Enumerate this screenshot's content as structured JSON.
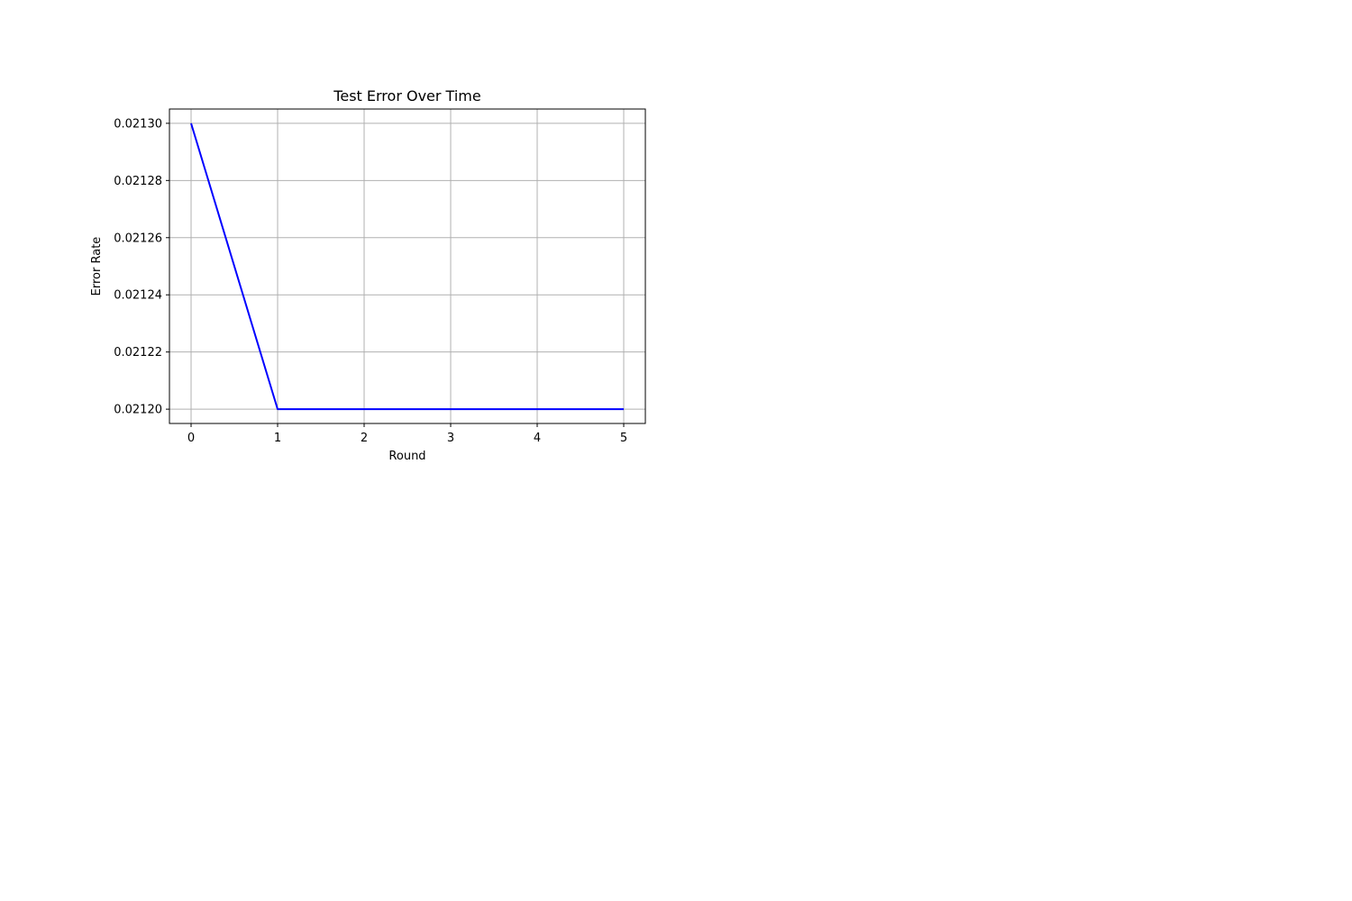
{
  "chart_data": {
    "type": "line",
    "title": "Test Error Over Time",
    "xlabel": "Round",
    "ylabel": "Error Rate",
    "x": [
      0,
      1,
      2,
      3,
      4,
      5
    ],
    "series": [
      {
        "values": [
          0.0213,
          0.0212,
          0.0212,
          0.0212,
          0.0212,
          0.0212
        ],
        "color": "#0000ff"
      }
    ],
    "xlim": [
      -0.25,
      5.25
    ],
    "ylim": [
      0.021195,
      0.021305
    ],
    "xticks": [
      0,
      1,
      2,
      3,
      4,
      5
    ],
    "xtick_labels": [
      "0",
      "1",
      "2",
      "3",
      "4",
      "5"
    ],
    "yticks": [
      0.0212,
      0.02122,
      0.02124,
      0.02126,
      0.02128,
      0.0213
    ],
    "ytick_labels": [
      "0.02120",
      "0.02122",
      "0.02124",
      "0.02126",
      "0.02128",
      "0.02130"
    ],
    "grid": true,
    "legend": false
  }
}
